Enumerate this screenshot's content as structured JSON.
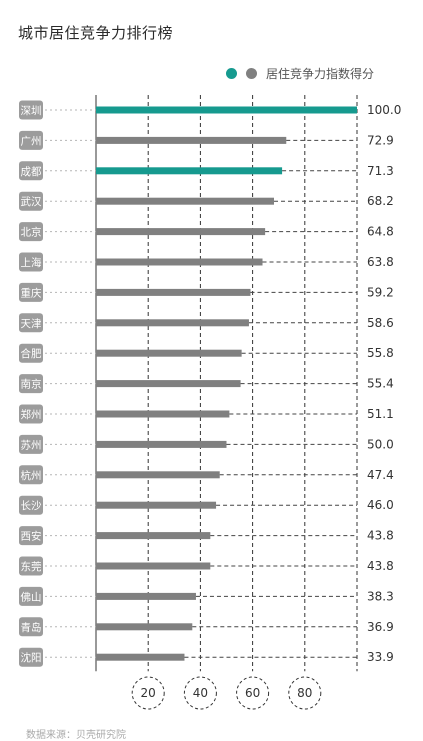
{
  "chart_data": {
    "type": "bar",
    "orientation": "horizontal",
    "title": "城市居住竞争力排行榜",
    "legend": {
      "label": "居住竞争力指数得分",
      "position": "top-right",
      "colors": [
        "#169a8f",
        "#808080"
      ]
    },
    "categories": [
      "深圳",
      "广州",
      "成都",
      "武汉",
      "北京",
      "上海",
      "重庆",
      "天津",
      "合肥",
      "南京",
      "郑州",
      "苏州",
      "杭州",
      "长沙",
      "西安",
      "东莞",
      "佛山",
      "青岛",
      "沈阳"
    ],
    "value_labels": [
      "100.0",
      "72.9",
      "71.3",
      "68.2",
      "64.8",
      "63.8",
      "59.2",
      "58.6",
      "55.8",
      "55.4",
      "51.1",
      "50.0",
      "47.4",
      "46.0",
      "43.8",
      "43.8",
      "38.3",
      "36.9",
      "33.9"
    ],
    "values": [
      100.0,
      72.9,
      71.3,
      68.2,
      64.8,
      63.8,
      59.2,
      58.6,
      55.8,
      55.4,
      51.1,
      50.0,
      47.4,
      46.0,
      43.8,
      43.8,
      38.3,
      36.9,
      33.9
    ],
    "highlighted": [
      "深圳",
      "成都"
    ],
    "highlight_color": "#169a8f",
    "bar_color": "#808080",
    "x_ticks": [
      20,
      40,
      60,
      80
    ],
    "x_tick_labels": [
      "20",
      "40",
      "60",
      "80"
    ],
    "xlim": [
      0,
      100
    ],
    "grid": true
  },
  "source": "数据来源：贝壳研究院"
}
